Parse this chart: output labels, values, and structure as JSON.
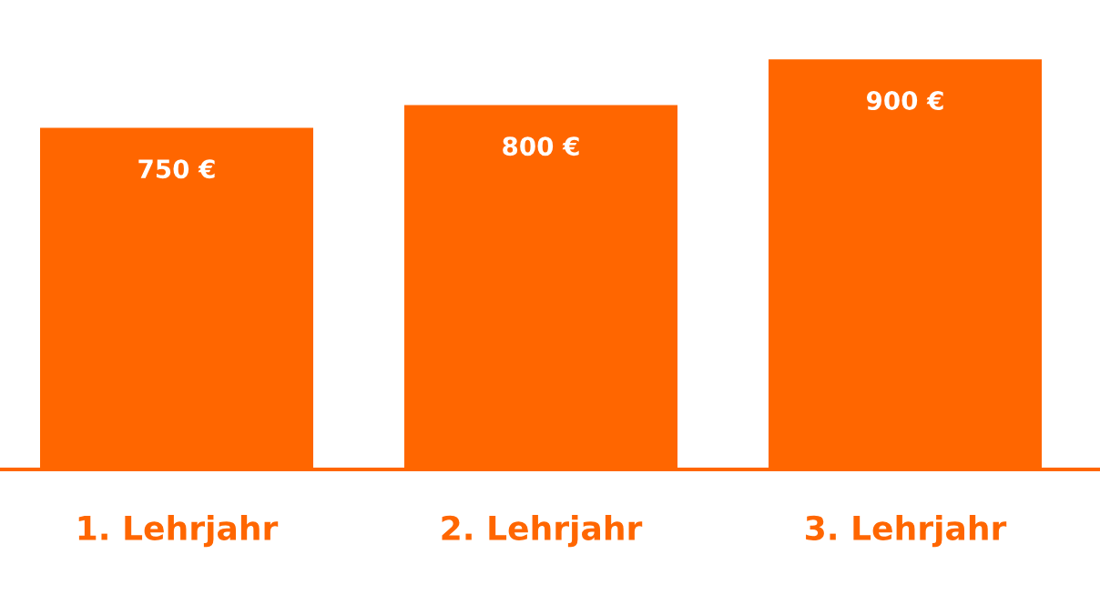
{
  "chart_data": {
    "type": "bar",
    "categories": [
      "1. Lehrjahr",
      "2. Lehrjahr",
      "3. Lehrjahr"
    ],
    "values": [
      750,
      800,
      900
    ],
    "value_labels": [
      "750 €",
      "800 €",
      "900 €"
    ],
    "color": "#ff6600",
    "grid": false,
    "legend": false
  }
}
